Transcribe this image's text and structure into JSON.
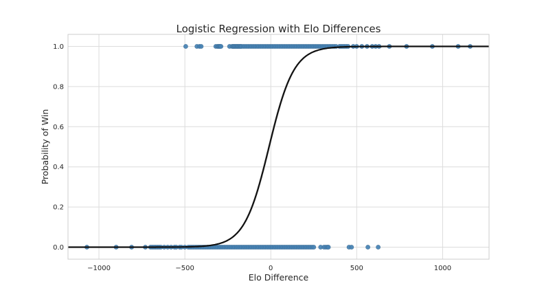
{
  "chart_data": {
    "type": "scatter",
    "title": "Logistic Regression with Elo Differences",
    "xlabel": "Elo Difference",
    "ylabel": "Probability of Win",
    "xlim": [
      -1180,
      1270
    ],
    "ylim": [
      -0.06,
      1.06
    ],
    "x_ticks": [
      -1000,
      -500,
      0,
      500,
      1000
    ],
    "x_tick_labels": [
      "−1000",
      "−500",
      "0",
      "500",
      "1000"
    ],
    "y_ticks": [
      0.0,
      0.2,
      0.4,
      0.6,
      0.8,
      1.0
    ],
    "y_tick_labels": [
      "0.0",
      "0.2",
      "0.4",
      "0.6",
      "0.8",
      "1.0"
    ],
    "grid": true,
    "style": "whitegrid",
    "colors": {
      "points": "#4682b4",
      "fit_line": "#111111",
      "confidence_band": "#c8c8c8"
    },
    "series": [
      {
        "kind": "points",
        "y": 1,
        "x": [
          -495,
          -430,
          -415,
          -405,
          -320,
          -310,
          -305,
          -300,
          -295,
          -290,
          -240,
          -225,
          -220,
          -215,
          -210,
          -205,
          -200,
          -195,
          -190,
          -185,
          -180,
          -175,
          -170,
          -160,
          -150,
          -140,
          -130,
          -120,
          -110,
          -100,
          -90,
          -80,
          -70,
          -60,
          -50,
          -40,
          -30,
          -20,
          -10,
          0,
          10,
          20,
          30,
          40,
          50,
          60,
          70,
          80,
          90,
          100,
          110,
          120,
          130,
          140,
          150,
          160,
          170,
          180,
          190,
          200,
          210,
          220,
          230,
          240,
          250,
          260,
          270,
          280,
          290,
          300,
          310,
          320,
          330,
          340,
          350,
          360,
          370,
          380,
          400,
          410,
          420,
          430,
          440,
          450,
          480,
          500,
          530,
          560,
          590,
          610,
          630,
          690,
          790,
          940,
          1090,
          1160
        ]
      },
      {
        "kind": "points",
        "y": 0,
        "x": [
          -1070,
          -900,
          -810,
          -730,
          -700,
          -690,
          -680,
          -670,
          -660,
          -650,
          -640,
          -620,
          -600,
          -580,
          -560,
          -550,
          -530,
          -520,
          -500,
          -480,
          -470,
          -460,
          -450,
          -440,
          -430,
          -420,
          -410,
          -400,
          -390,
          -380,
          -370,
          -360,
          -350,
          -340,
          -330,
          -320,
          -310,
          -300,
          -290,
          -280,
          -270,
          -260,
          -250,
          -240,
          -230,
          -220,
          -210,
          -200,
          -190,
          -180,
          -170,
          -160,
          -150,
          -140,
          -130,
          -120,
          -110,
          -100,
          -90,
          -80,
          -70,
          -60,
          -50,
          -40,
          -30,
          -20,
          -10,
          0,
          10,
          20,
          30,
          40,
          50,
          60,
          70,
          80,
          90,
          100,
          110,
          120,
          130,
          140,
          150,
          160,
          170,
          180,
          190,
          200,
          210,
          220,
          230,
          240,
          250,
          290,
          310,
          320,
          330,
          335,
          455,
          470,
          565,
          625
        ]
      },
      {
        "kind": "logistic_fit",
        "midpoint": -10,
        "scale": 72,
        "band_width": 0.012
      }
    ]
  }
}
